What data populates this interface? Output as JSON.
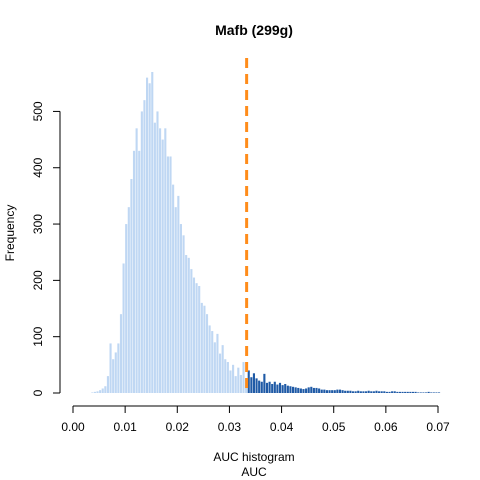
{
  "chart_data": {
    "type": "bar",
    "title": "Mafb (299g)",
    "xlabel_line1": "AUC histogram",
    "xlabel_line2": "AUC",
    "ylabel": "Frequency",
    "xlim": [
      0.0,
      0.07
    ],
    "ylim": [
      0,
      570
    ],
    "xticks": [
      "0.00",
      "0.01",
      "0.02",
      "0.03",
      "0.04",
      "0.05",
      "0.06",
      "0.07"
    ],
    "yticks": [
      "0",
      "100",
      "200",
      "300",
      "400",
      "500"
    ],
    "bin_width": 0.0005,
    "bin_start": 0.0,
    "threshold": 0.0333,
    "colors": {
      "below": "#bfd7f3",
      "above": "#1f5aa6",
      "threshold": "#ff8c1a"
    },
    "values": [
      0,
      0,
      0,
      0,
      0,
      0,
      0,
      1,
      2,
      3,
      5,
      8,
      12,
      30,
      88,
      60,
      72,
      88,
      140,
      230,
      300,
      330,
      380,
      430,
      470,
      430,
      500,
      520,
      560,
      550,
      570,
      480,
      500,
      470,
      450,
      470,
      420,
      420,
      370,
      330,
      350,
      300,
      280,
      245,
      240,
      220,
      205,
      195,
      190,
      160,
      155,
      140,
      120,
      110,
      90,
      105,
      70,
      85,
      60,
      55,
      40,
      50,
      30,
      45,
      32,
      55,
      25,
      40,
      28,
      35,
      26,
      22,
      20,
      34,
      18,
      20,
      16,
      20,
      15,
      18,
      14,
      16,
      13,
      12,
      11,
      10,
      9,
      8,
      7,
      8,
      10,
      11,
      9,
      9,
      8,
      6,
      6,
      5,
      5,
      5,
      5,
      6,
      6,
      5,
      4,
      4,
      4,
      3,
      3,
      4,
      3,
      3,
      3,
      4,
      3,
      3,
      4,
      3,
      3,
      3,
      2,
      2,
      3,
      3,
      2,
      2,
      2,
      2,
      2,
      2,
      2,
      2,
      1,
      1,
      1,
      1,
      2,
      1,
      1,
      1,
      1
    ]
  }
}
